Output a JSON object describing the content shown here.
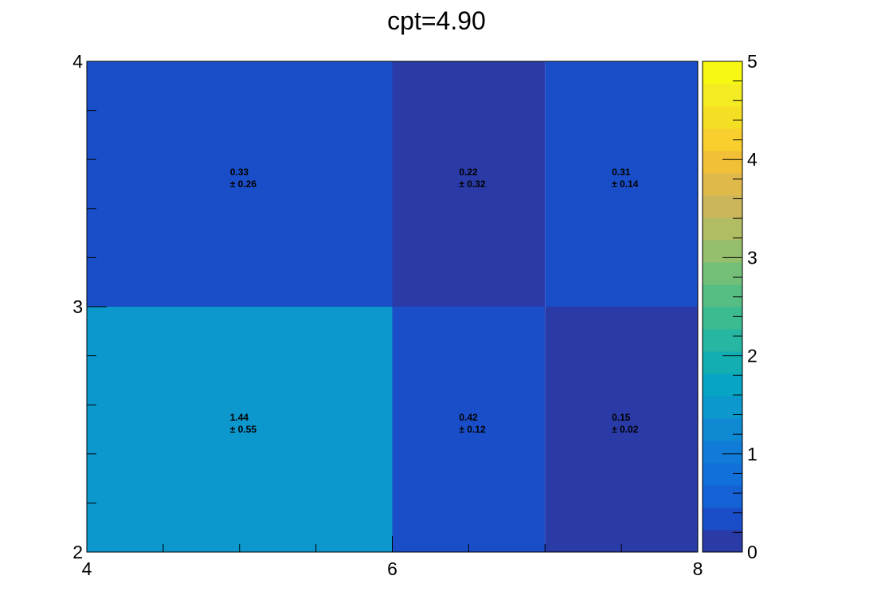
{
  "chart_data": {
    "type": "heatmap",
    "title": "cpt=4.90",
    "xlabel": "",
    "ylabel": "",
    "x_edges": [
      4,
      6,
      7,
      8
    ],
    "y_edges": [
      2,
      3,
      4
    ],
    "xlim": [
      4,
      8
    ],
    "ylim": [
      2,
      4
    ],
    "x_ticks": [
      4,
      6,
      8
    ],
    "y_ticks": [
      2,
      3,
      4
    ],
    "colorbar": {
      "range": [
        0,
        5
      ],
      "ticks": [
        0,
        1,
        2,
        3,
        4,
        5
      ],
      "palette": [
        "#2a3aa6",
        "#1a4ec8",
        "#1562d6",
        "#1170da",
        "#107cd7",
        "#0e89d2",
        "#0c97cd",
        "#08a4c3",
        "#12aeb2",
        "#26b6a2",
        "#3cbb91",
        "#56bd83",
        "#74bf77",
        "#95bf6c",
        "#b2bc63",
        "#cbb65c",
        "#e0b94b",
        "#f2c037",
        "#f8cf2c",
        "#f4df25",
        "#f3ec22",
        "#f7f813"
      ]
    },
    "cells": [
      {
        "x0": 4,
        "x1": 6,
        "y0": 2,
        "y1": 3,
        "value": 1.44,
        "value_label": "1.44",
        "error_label": "± 0.55"
      },
      {
        "x0": 6,
        "x1": 7,
        "y0": 2,
        "y1": 3,
        "value": 0.42,
        "value_label": "0.42",
        "error_label": "± 0.12"
      },
      {
        "x0": 7,
        "x1": 8,
        "y0": 2,
        "y1": 3,
        "value": 0.15,
        "value_label": "0.15",
        "error_label": "± 0.02"
      },
      {
        "x0": 4,
        "x1": 6,
        "y0": 3,
        "y1": 4,
        "value": 0.33,
        "value_label": "0.33",
        "error_label": "± 0.26"
      },
      {
        "x0": 6,
        "x1": 7,
        "y0": 3,
        "y1": 4,
        "value": 0.22,
        "value_label": "0.22",
        "error_label": "± 0.32"
      },
      {
        "x0": 7,
        "x1": 8,
        "y0": 3,
        "y1": 4,
        "value": 0.31,
        "value_label": "0.31",
        "error_label": "± 0.14"
      }
    ]
  }
}
